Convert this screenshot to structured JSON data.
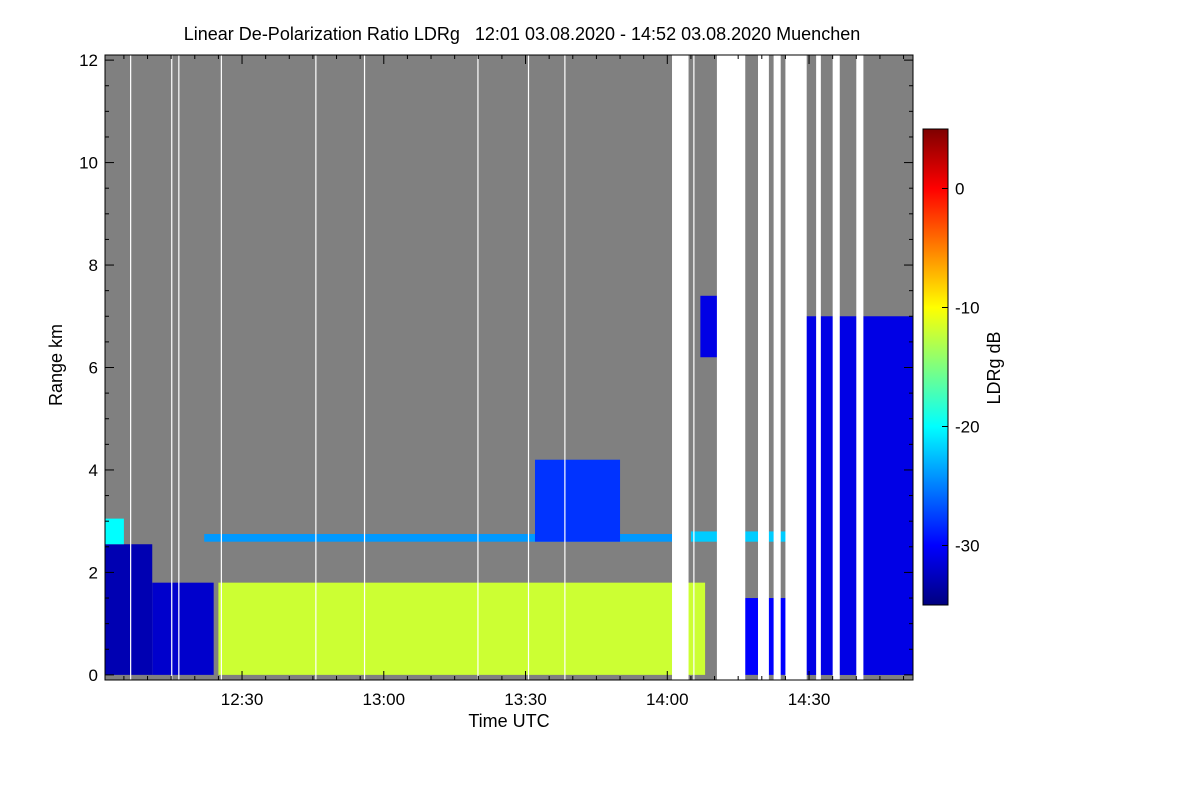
{
  "chart_data": {
    "type": "heatmap",
    "title": "Linear De-Polarization Ratio LDRg   12:01 03.08.2020 - 14:52 03.08.2020 Muenchen",
    "xlabel": "Time UTC",
    "ylabel": "Range km",
    "x_range_minutes": [
      721,
      892
    ],
    "y_range_km": [
      -0.1,
      12.1
    ],
    "x_ticks": [
      {
        "minute": 750,
        "label": "12:30"
      },
      {
        "minute": 780,
        "label": "13:00"
      },
      {
        "minute": 810,
        "label": "13:30"
      },
      {
        "minute": 840,
        "label": "14:00"
      },
      {
        "minute": 870,
        "label": "14:30"
      }
    ],
    "y_ticks": [
      {
        "value": 0,
        "label": "0"
      },
      {
        "value": 2,
        "label": "2"
      },
      {
        "value": 4,
        "label": "4"
      },
      {
        "value": 6,
        "label": "6"
      },
      {
        "value": 8,
        "label": "8"
      },
      {
        "value": 10,
        "label": "10"
      },
      {
        "value": 12,
        "label": "12"
      }
    ],
    "colorbar": {
      "label": "LDRg dB",
      "range_db": [
        -35,
        5
      ],
      "ticks": [
        {
          "value": 0,
          "label": "0"
        },
        {
          "value": -10,
          "label": "-10"
        },
        {
          "value": -20,
          "label": "-20"
        },
        {
          "value": -30,
          "label": "-30"
        }
      ],
      "colormap": [
        "#00007f",
        "#0000ff",
        "#007fff",
        "#00ffff",
        "#7fff7f",
        "#ffff00",
        "#ff7f00",
        "#ff0000",
        "#7f0000"
      ]
    },
    "background_color": "#808080",
    "gap_color": "#ffffff",
    "data_gaps_minutes": [
      [
        726.3,
        726.5
      ],
      [
        735.0,
        735.2
      ],
      [
        736.5,
        736.7
      ],
      [
        745.5,
        745.7
      ],
      [
        765.5,
        765.7
      ],
      [
        775.8,
        776.0
      ],
      [
        799.8,
        800.0
      ],
      [
        810.5,
        810.7
      ],
      [
        818.2,
        818.4
      ],
      [
        841.0,
        844.5
      ],
      [
        845.5,
        845.7
      ],
      [
        850.5,
        856.5
      ],
      [
        859.2,
        861.5
      ],
      [
        862.5,
        864.0
      ],
      [
        865.0,
        869.5
      ],
      [
        871.5,
        872.5
      ],
      [
        875.0,
        876.5
      ],
      [
        880.0,
        881.5
      ]
    ],
    "layers": [
      {
        "name": "surface-depolarization-block",
        "t": [
          721.0,
          731.0
        ],
        "h": [
          0.0,
          2.55
        ],
        "ldr_db": -33
      },
      {
        "name": "boundary-layer-decay",
        "t": [
          731.0,
          744.0
        ],
        "h": [
          0.0,
          1.8
        ],
        "ldr_db": -32
      },
      {
        "name": "top-of-boundary-layer",
        "t": [
          721.0,
          725.0
        ],
        "h": [
          2.55,
          3.05
        ],
        "ldr_db": -20
      },
      {
        "name": "aerosol-layer",
        "t": [
          742.0,
          842.0
        ],
        "h": [
          2.6,
          2.75
        ],
        "ldr_db": -24
      },
      {
        "name": "fall-streaks",
        "t": [
          812.0,
          830.0
        ],
        "h": [
          2.6,
          4.2
        ],
        "ldr_db": -28
      },
      {
        "name": "low-level-particles",
        "t": [
          745.0,
          848.0
        ],
        "h": [
          0.0,
          1.8
        ],
        "ldr_db": -12
      },
      {
        "name": "aerosol-layer-late",
        "t": [
          845.0,
          874.0
        ],
        "h": [
          2.6,
          2.8
        ],
        "ldr_db": -22
      },
      {
        "name": "cloud-column",
        "t": [
          847.0,
          851.0
        ],
        "h": [
          6.2,
          7.4
        ],
        "ldr_db": -31
      },
      {
        "name": "surface-clutter-late",
        "t": [
          856.0,
          892.0
        ],
        "h": [
          0.0,
          1.5
        ],
        "ldr_db": -30
      },
      {
        "name": "columns-late",
        "t": [
          866.0,
          892.0
        ],
        "h": [
          0.0,
          7.0
        ],
        "ldr_db": -31
      }
    ]
  }
}
